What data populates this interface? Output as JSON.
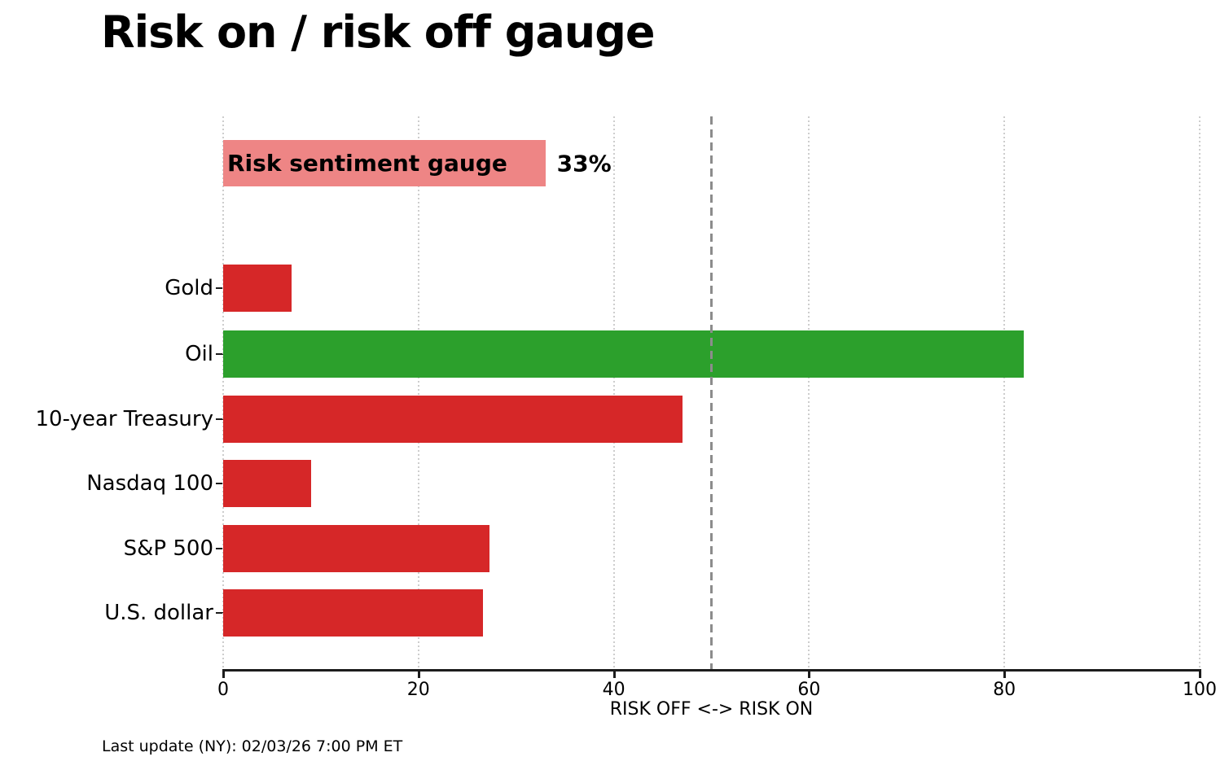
{
  "title": "Risk on / risk off gauge",
  "footer": {
    "last_update": "Last update (NY): 02/03/26 7:00 PM ET"
  },
  "chart_data": {
    "type": "bar",
    "orientation": "horizontal",
    "title": "Risk on / risk off gauge",
    "xlabel": "RISK OFF <-> RISK ON",
    "xlim": [
      0,
      100
    ],
    "xticks": [
      0,
      20,
      40,
      60,
      80,
      100
    ],
    "reference_line_x": 50,
    "grid": {
      "vertical_dotted_at_xticks": true
    },
    "gauge": {
      "label": "Risk sentiment gauge",
      "value": 33,
      "value_label": "33%",
      "color": "#ee8585"
    },
    "categories": [
      "Gold",
      "Oil",
      "10-year Treasury",
      "Nasdaq 100",
      "S&P 500",
      "U.S. dollar"
    ],
    "values": [
      7,
      82,
      47,
      9,
      27.3,
      26.6
    ],
    "bar_colors": [
      "#d62728",
      "#2ca02c",
      "#d62728",
      "#d62728",
      "#d62728",
      "#d62728"
    ],
    "colors": {
      "risk_off_red": "#d62728",
      "risk_on_green": "#2ca02c",
      "gauge_pink": "#ee8585",
      "gridline": "#cdcdcd",
      "reference_line": "#8c8c8c",
      "axis": "#1c1c1c"
    }
  }
}
